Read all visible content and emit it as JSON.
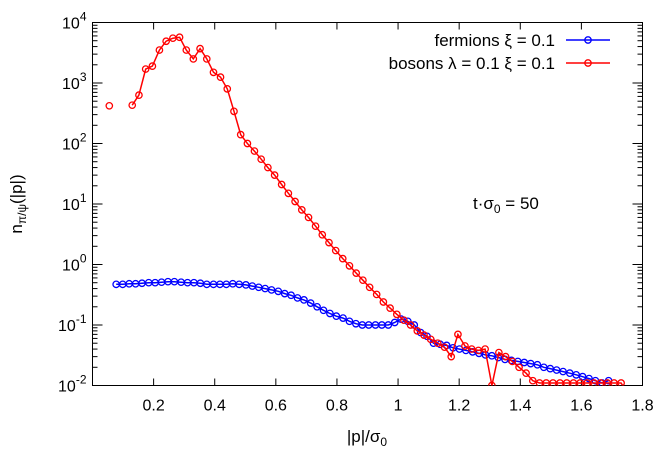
{
  "chart_data": {
    "type": "line",
    "xlabel": "|p|/σ",
    "xlabel_sub": "0",
    "ylabel_main": "n",
    "ylabel_sub": "π/ψ",
    "ylabel_tail": "(|p|)",
    "annotation": {
      "prefix": "t·σ",
      "sub": "0",
      "suffix": " = 50"
    },
    "xlim": [
      0,
      1.8
    ],
    "ylim": [
      0.01,
      10000
    ],
    "yscale": "log",
    "grid": false,
    "legend_position": "top-right",
    "xticks": [
      "0.2",
      "0.4",
      "0.6",
      "0.8",
      "1",
      "1.2",
      "1.4",
      "1.6",
      "1.8"
    ],
    "xtick_values": [
      0.2,
      0.4,
      0.6,
      0.8,
      1.0,
      1.2,
      1.4,
      1.6,
      1.8
    ],
    "yticks": [
      {
        "value": 0.01,
        "base": "10",
        "exp": "-2"
      },
      {
        "value": 0.1,
        "base": "10",
        "exp": "-1"
      },
      {
        "value": 1,
        "base": "10",
        "exp": "0"
      },
      {
        "value": 10,
        "base": "10",
        "exp": "1"
      },
      {
        "value": 100,
        "base": "10",
        "exp": "2"
      },
      {
        "value": 1000,
        "base": "10",
        "exp": "3"
      },
      {
        "value": 10000,
        "base": "10",
        "exp": "4"
      }
    ],
    "series": [
      {
        "name": "fermions ξ = 0.1",
        "color": "#0000ff",
        "segments": [
          {
            "x": [
              0.0775,
              0.0988,
              0.12,
              0.141,
              0.162,
              0.184,
              0.205,
              0.226,
              0.247,
              0.268,
              0.29,
              0.311,
              0.332,
              0.353,
              0.374,
              0.396,
              0.417,
              0.438,
              0.459,
              0.48,
              0.502,
              0.523,
              0.544,
              0.565,
              0.586,
              0.608,
              0.629,
              0.65,
              0.671,
              0.692,
              0.714,
              0.735,
              0.756,
              0.777,
              0.798,
              0.82,
              0.841,
              0.862,
              0.883,
              0.904,
              0.926,
              0.947,
              0.968,
              0.989,
              1.01,
              1.032,
              1.053,
              1.074,
              1.095,
              1.116,
              1.138,
              1.159,
              1.18,
              1.201,
              1.222,
              1.244,
              1.265,
              1.286,
              1.307,
              1.328,
              1.35,
              1.371,
              1.392,
              1.413,
              1.434,
              1.456,
              1.477,
              1.498,
              1.519,
              1.54,
              1.562,
              1.583,
              1.604,
              1.625,
              1.646,
              1.668,
              1.689
            ],
            "y": [
              0.47,
              0.47,
              0.48,
              0.48,
              0.49,
              0.5,
              0.5,
              0.51,
              0.52,
              0.52,
              0.51,
              0.5,
              0.5,
              0.49,
              0.47,
              0.47,
              0.47,
              0.47,
              0.48,
              0.47,
              0.46,
              0.44,
              0.42,
              0.4,
              0.38,
              0.36,
              0.33,
              0.31,
              0.28,
              0.26,
              0.23,
              0.2,
              0.175,
              0.155,
              0.14,
              0.13,
              0.115,
              0.105,
              0.1,
              0.1,
              0.1,
              0.1,
              0.1,
              0.11,
              0.125,
              0.115,
              0.1,
              0.075,
              0.065,
              0.05,
              0.048,
              0.046,
              0.042,
              0.04,
              0.038,
              0.036,
              0.034,
              0.032,
              0.031,
              0.029,
              0.027,
              0.026,
              0.025,
              0.024,
              0.023,
              0.022,
              0.02,
              0.019,
              0.018,
              0.017,
              0.016,
              0.015,
              0.014,
              0.013,
              0.012,
              0.011,
              0.012
            ]
          }
        ]
      },
      {
        "name": "bosons λ = 0.1 ξ = 0.1",
        "color": "#ff0000",
        "segments": [
          {
            "x": [
              0.055
            ],
            "y": [
              420
            ]
          },
          {
            "x": [
              0.13,
              0.152,
              0.174,
              0.196,
              0.219,
              0.241,
              0.263,
              0.285,
              0.307,
              0.33,
              0.352,
              0.374,
              0.396,
              0.419,
              0.441,
              0.463,
              0.485,
              0.507,
              0.53,
              0.552,
              0.574,
              0.596,
              0.619,
              0.641,
              0.663,
              0.685,
              0.707,
              0.73,
              0.752,
              0.774,
              0.796,
              0.819,
              0.841,
              0.863,
              0.885,
              0.907,
              0.93,
              0.952,
              0.974,
              0.996,
              1.019,
              1.041,
              1.063,
              1.085,
              1.107,
              1.13,
              1.152,
              1.174,
              1.196,
              1.219,
              1.241,
              1.263,
              1.285,
              1.307,
              1.33,
              1.352,
              1.374,
              1.396,
              1.419,
              1.441,
              1.463,
              1.485,
              1.507,
              1.53,
              1.552,
              1.574,
              1.596,
              1.619,
              1.641,
              1.663,
              1.685,
              1.707,
              1.73,
              1.75
            ],
            "y": [
              430,
              630,
              1700,
              1900,
              3500,
              4900,
              5500,
              5700,
              3500,
              2500,
              3700,
              2500,
              1500,
              1250,
              800,
              340,
              140,
              100,
              75,
              55,
              40,
              30,
              21,
              15,
              11,
              8,
              6,
              4.3,
              3.1,
              2.3,
              1.7,
              1.25,
              0.95,
              0.72,
              0.55,
              0.42,
              0.32,
              0.24,
              0.19,
              0.15,
              0.12,
              0.1,
              0.08,
              0.068,
              0.058,
              0.05,
              0.043,
              0.03,
              0.07,
              0.045,
              0.04,
              0.038,
              0.04,
              0.01,
              0.035,
              0.03,
              0.025,
              0.02,
              0.016,
              0.012,
              0.011,
              0.011,
              0.011,
              0.011,
              0.011,
              0.011,
              0.011,
              0.011,
              0.011,
              0.011,
              0.011,
              0.011,
              0.011,
              0.0095
            ]
          }
        ]
      }
    ]
  }
}
